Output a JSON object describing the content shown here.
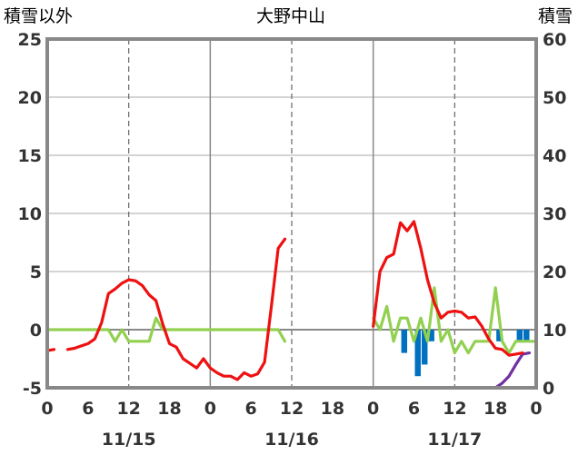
{
  "chart_data": {
    "type": "line",
    "title": "大野中山",
    "left_axis_label": "積雪以外",
    "right_axis_label": "積雪",
    "left_ylim": [
      -5,
      25
    ],
    "left_yticks": [
      25,
      20,
      15,
      10,
      5,
      0,
      -5
    ],
    "right_ylim": [
      0,
      60
    ],
    "right_yticks": [
      60,
      50,
      40,
      30,
      20,
      10,
      0
    ],
    "x_range_hours": [
      0,
      72
    ],
    "x_tick_labels": [
      "0",
      "6",
      "12",
      "18",
      "0",
      "6",
      "12",
      "18",
      "0",
      "6",
      "12",
      "18",
      "0"
    ],
    "date_labels": [
      {
        "label": "11/15",
        "hour": 12
      },
      {
        "label": "11/16",
        "hour": 36
      },
      {
        "label": "11/17",
        "hour": 60
      }
    ],
    "grid": "vertical dashed at 12h and 36h, 60h; solid at day boundaries and y=0",
    "series": [
      {
        "role": "temperature",
        "axis": "left",
        "color": "#ee1111",
        "segments": [
          [
            [
              0,
              -1.8
            ],
            [
              1,
              -1.7
            ]
          ],
          [
            [
              3,
              -1.7
            ],
            [
              4,
              -1.6
            ],
            [
              5,
              -1.4
            ],
            [
              6,
              -1.2
            ],
            [
              7,
              -0.8
            ],
            [
              8,
              0.6
            ],
            [
              9,
              3.1
            ],
            [
              10,
              3.5
            ],
            [
              11,
              4.0
            ],
            [
              12,
              4.3
            ],
            [
              13,
              4.2
            ],
            [
              14,
              3.8
            ],
            [
              15,
              3.0
            ],
            [
              16,
              2.5
            ],
            [
              17,
              0.5
            ],
            [
              18,
              -1.2
            ],
            [
              19,
              -1.5
            ],
            [
              20,
              -2.5
            ],
            [
              21,
              -2.9
            ],
            [
              22,
              -3.3
            ],
            [
              23,
              -2.5
            ],
            [
              24,
              -3.3
            ],
            [
              25,
              -3.7
            ],
            [
              26,
              -4.0
            ],
            [
              27,
              -4.0
            ],
            [
              28,
              -4.3
            ],
            [
              29,
              -3.7
            ],
            [
              30,
              -4.0
            ],
            [
              31,
              -3.8
            ],
            [
              32,
              -2.8
            ],
            [
              33,
              2.0
            ],
            [
              34,
              7.0
            ],
            [
              35,
              7.8
            ]
          ],
          [
            [
              48,
              0.3
            ],
            [
              49,
              5.0
            ],
            [
              50,
              6.2
            ],
            [
              51,
              6.5
            ],
            [
              52,
              9.2
            ],
            [
              53,
              8.5
            ],
            [
              54,
              9.3
            ],
            [
              55,
              7.0
            ],
            [
              56,
              4.3
            ],
            [
              57,
              2.3
            ],
            [
              58,
              1.0
            ],
            [
              59,
              1.5
            ],
            [
              60,
              1.6
            ],
            [
              61,
              1.5
            ],
            [
              62,
              1.0
            ],
            [
              63,
              1.1
            ],
            [
              64,
              0.3
            ],
            [
              65,
              -0.8
            ],
            [
              66,
              -1.6
            ],
            [
              67,
              -1.7
            ],
            [
              68,
              -2.2
            ],
            [
              69,
              -2.1
            ],
            [
              70,
              -2.0
            ]
          ]
        ]
      },
      {
        "role": "green",
        "axis": "left",
        "color": "#92d050",
        "segments": [
          [
            [
              0,
              0
            ],
            [
              9,
              0
            ],
            [
              10,
              -1.0
            ],
            [
              11,
              0
            ],
            [
              12,
              -1.0
            ],
            [
              13,
              -1.0
            ],
            [
              14,
              -1.0
            ],
            [
              15,
              -1.0
            ],
            [
              16,
              1.0
            ],
            [
              17,
              0
            ],
            [
              34,
              0
            ],
            [
              35,
              -1.0
            ]
          ],
          [
            [
              48,
              1.0
            ],
            [
              49,
              0
            ],
            [
              50,
              2.0
            ],
            [
              51,
              -1.0
            ],
            [
              52,
              1.0
            ],
            [
              53,
              1.0
            ],
            [
              54,
              -1.0
            ],
            [
              55,
              1.0
            ],
            [
              56,
              -1.0
            ],
            [
              57,
              3.6
            ],
            [
              58,
              -1.0
            ],
            [
              59,
              0
            ],
            [
              60,
              -2.0
            ],
            [
              61,
              -1.0
            ],
            [
              62,
              -2.0
            ],
            [
              63,
              -1.0
            ],
            [
              64,
              -1.0
            ],
            [
              65,
              -1.0
            ],
            [
              66,
              3.6
            ],
            [
              67,
              -1.0
            ],
            [
              68,
              -2.0
            ],
            [
              69,
              -1.0
            ],
            [
              70,
              -1.0
            ],
            [
              71,
              -1.0
            ],
            [
              72,
              -1.0
            ]
          ]
        ]
      },
      {
        "role": "purple",
        "axis": "left",
        "color": "#7030a0",
        "segments": [
          [
            [
              0,
              -5
            ],
            [
              36,
              -5
            ]
          ],
          [
            [
              48,
              -5
            ],
            [
              66,
              -5
            ],
            [
              67,
              -4.6
            ],
            [
              68,
              -4.0
            ],
            [
              69,
              -3.0
            ],
            [
              70,
              -2.1
            ],
            [
              71,
              -2.0
            ]
          ]
        ]
      },
      {
        "role": "bars",
        "axis": "left",
        "color": "#0070c0",
        "bars": [
          {
            "hour": 53,
            "value": -2.0
          },
          {
            "hour": 55,
            "value": -4.0
          },
          {
            "hour": 56,
            "value": -3.0
          },
          {
            "hour": 57,
            "value": -1.0
          },
          {
            "hour": 67,
            "value": -1.0
          },
          {
            "hour": 70,
            "value": -1.0
          },
          {
            "hour": 71,
            "value": -1.0
          }
        ]
      }
    ]
  }
}
